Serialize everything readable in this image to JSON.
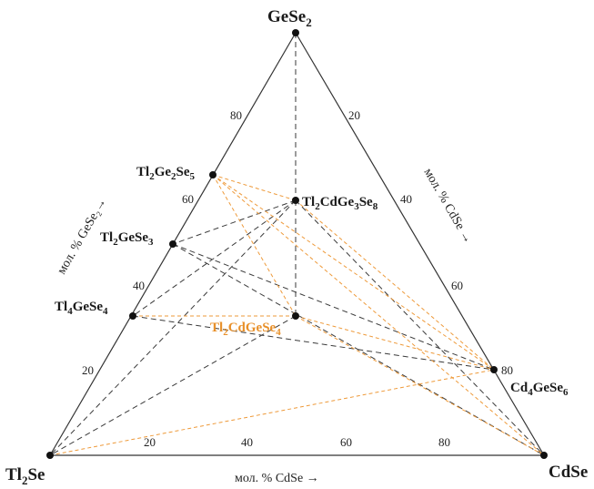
{
  "labels": {
    "top": "GeSe",
    "top_sub": "2",
    "left": "Tl",
    "left_sub": "2",
    "left_tail": "Se",
    "right": "CdSe"
  },
  "compounds": {
    "tl2ge2se5": [
      "Tl",
      "2",
      "Ge",
      "2",
      "Se",
      "5"
    ],
    "tl2cdge3se8": [
      "Tl",
      "2",
      "CdGe",
      "3",
      "Se",
      "8"
    ],
    "tl2gese3": [
      "Tl",
      "2",
      "GeSe",
      "3"
    ],
    "tl4gese4": [
      "Tl",
      "4",
      "GeSe",
      "4"
    ],
    "tl2cdgese4": [
      "Tl",
      "2",
      "CdGeSe",
      "4"
    ],
    "cd4gese6": [
      "Cd",
      "4",
      "GeSe",
      "6"
    ]
  },
  "ticks": {
    "bottom": [
      "20",
      "40",
      "60",
      "80"
    ],
    "left": [
      "20",
      "40",
      "60",
      "80"
    ],
    "right": [
      "20",
      "40",
      "60",
      "80"
    ]
  },
  "axes": {
    "bottom": "мол. % CdSe →",
    "left": "мол. % GeSe₂→",
    "right": "мол. % CdSe →"
  },
  "colors": {
    "dark_ties": "#3a3a3a",
    "orange_ties": "#ee9a3a",
    "orange_label": "#e8902a"
  }
}
